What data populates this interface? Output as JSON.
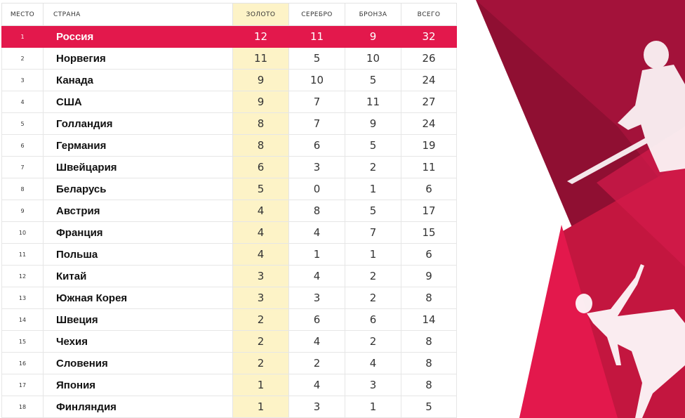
{
  "table": {
    "headers": {
      "rank": "МЕСТО",
      "country": "СТРАНА",
      "gold": "ЗОЛОТО",
      "silver": "СЕРЕБРО",
      "bronze": "БРОНЗА",
      "total": "ВСЕГО"
    },
    "rows": [
      {
        "rank": "1",
        "country": "Россия",
        "gold": "12",
        "silver": "11",
        "bronze": "9",
        "total": "32"
      },
      {
        "rank": "2",
        "country": "Норвегия",
        "gold": "11",
        "silver": "5",
        "bronze": "10",
        "total": "26"
      },
      {
        "rank": "3",
        "country": "Канада",
        "gold": "9",
        "silver": "10",
        "bronze": "5",
        "total": "24"
      },
      {
        "rank": "4",
        "country": "США",
        "gold": "9",
        "silver": "7",
        "bronze": "11",
        "total": "27"
      },
      {
        "rank": "5",
        "country": "Голландия",
        "gold": "8",
        "silver": "7",
        "bronze": "9",
        "total": "24"
      },
      {
        "rank": "6",
        "country": "Германия",
        "gold": "8",
        "silver": "6",
        "bronze": "5",
        "total": "19"
      },
      {
        "rank": "7",
        "country": "Швейцария",
        "gold": "6",
        "silver": "3",
        "bronze": "2",
        "total": "11"
      },
      {
        "rank": "8",
        "country": "Беларусь",
        "gold": "5",
        "silver": "0",
        "bronze": "1",
        "total": "6"
      },
      {
        "rank": "9",
        "country": "Австрия",
        "gold": "4",
        "silver": "8",
        "bronze": "5",
        "total": "17"
      },
      {
        "rank": "10",
        "country": "Франция",
        "gold": "4",
        "silver": "4",
        "bronze": "7",
        "total": "15"
      },
      {
        "rank": "11",
        "country": "Польша",
        "gold": "4",
        "silver": "1",
        "bronze": "1",
        "total": "6"
      },
      {
        "rank": "12",
        "country": "Китай",
        "gold": "3",
        "silver": "4",
        "bronze": "2",
        "total": "9"
      },
      {
        "rank": "13",
        "country": "Южная Корея",
        "gold": "3",
        "silver": "3",
        "bronze": "2",
        "total": "8"
      },
      {
        "rank": "14",
        "country": "Швеция",
        "gold": "2",
        "silver": "6",
        "bronze": "6",
        "total": "14"
      },
      {
        "rank": "15",
        "country": "Чехия",
        "gold": "2",
        "silver": "4",
        "bronze": "2",
        "total": "8"
      },
      {
        "rank": "16",
        "country": "Словения",
        "gold": "2",
        "silver": "2",
        "bronze": "4",
        "total": "8"
      },
      {
        "rank": "17",
        "country": "Япония",
        "gold": "1",
        "silver": "4",
        "bronze": "3",
        "total": "8"
      },
      {
        "rank": "18",
        "country": "Финляндия",
        "gold": "1",
        "silver": "3",
        "bronze": "1",
        "total": "5"
      }
    ]
  },
  "theme": {
    "leader_row_color": "#e3184c",
    "gold_column_color": "#fdf3c7",
    "background_accent": "#a3123a"
  },
  "background": {
    "illustrations": [
      "hockey-player-icon",
      "figure-skater-icon"
    ]
  }
}
